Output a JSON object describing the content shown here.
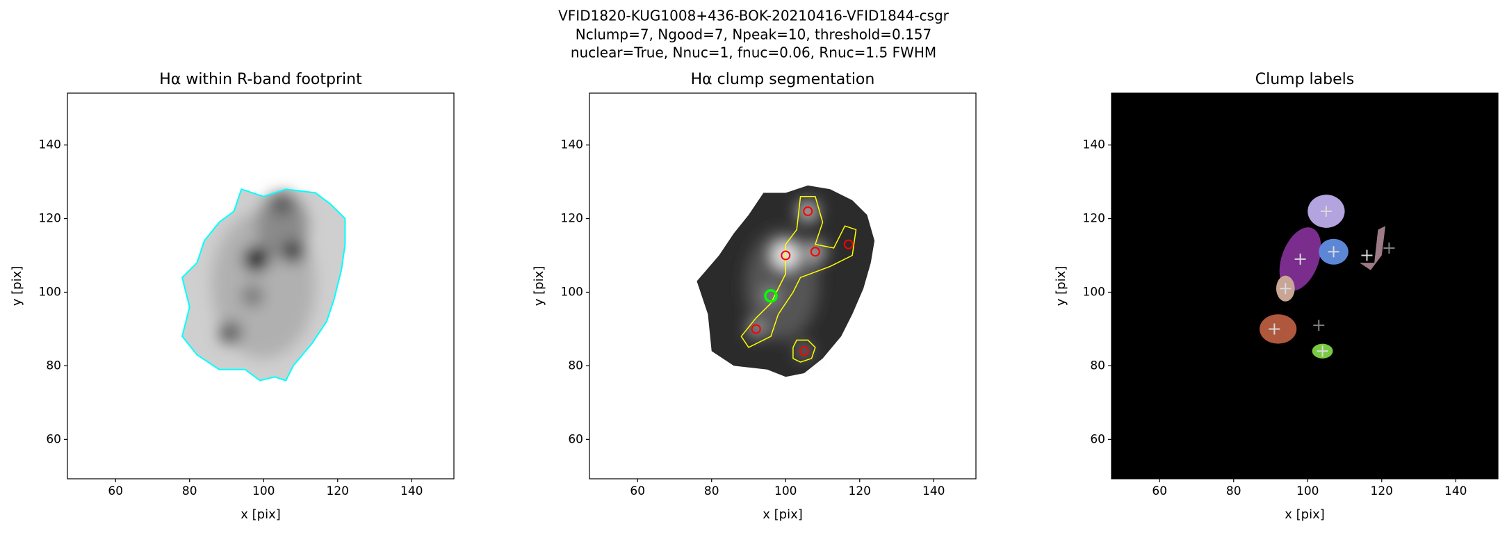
{
  "title": [
    "VFID1820-KUG1008+436-BOK-20210416-VFID1844-csgr",
    "Nclump=7, Ngood=7, Npeak=10, threshold=0.157",
    "nuclear=True, Nnuc=1, fnuc=0.06, Rnuc=1.5 FWHM"
  ],
  "chart_data": [
    {
      "type": "image",
      "title": "Hα within R-band footprint",
      "xlabel": "x [pix]",
      "ylabel": "y [pix]",
      "xlim": [
        47,
        151.4
      ],
      "ylim": [
        49.3,
        154.1
      ],
      "xticks": [
        60,
        80,
        100,
        120,
        140
      ],
      "yticks": [
        60,
        80,
        100,
        120,
        140
      ]
    },
    {
      "type": "image",
      "title": "Hα clump segmentation",
      "xlabel": "x [pix]",
      "ylabel": "y [pix]",
      "xlim": [
        47,
        151.4
      ],
      "ylim": [
        49.3,
        154.1
      ],
      "xticks": [
        60,
        80,
        100,
        120,
        140
      ],
      "yticks": [
        60,
        80,
        100,
        120,
        140
      ],
      "series": [
        {
          "color": "#ff0000",
          "marker": "o",
          "x": [
            106,
            100,
            108,
            117,
            92,
            105
          ],
          "y": [
            122,
            110,
            111,
            113,
            90,
            84
          ]
        },
        {
          "color": "#00ff00",
          "marker": "O",
          "x": [
            96
          ],
          "y": [
            99
          ]
        }
      ]
    },
    {
      "type": "image",
      "title": "Clump labels",
      "xlabel": "x [pix]",
      "ylabel": "y [pix]",
      "xlim": [
        47,
        151.4
      ],
      "ylim": [
        49.3,
        154.1
      ],
      "xticks": [
        60,
        80,
        100,
        120,
        140
      ],
      "yticks": [
        60,
        80,
        100,
        120,
        140
      ],
      "series": [
        {
          "color": "#d9d9d9",
          "marker": "+",
          "x": [
            105,
            98,
            107,
            116,
            94,
            91,
            104
          ],
          "y": [
            122,
            109,
            111,
            110,
            101,
            90,
            84
          ]
        },
        {
          "color": "#808080",
          "marker": "+",
          "x": [
            122,
            103
          ],
          "y": [
            112,
            91
          ]
        }
      ]
    }
  ]
}
